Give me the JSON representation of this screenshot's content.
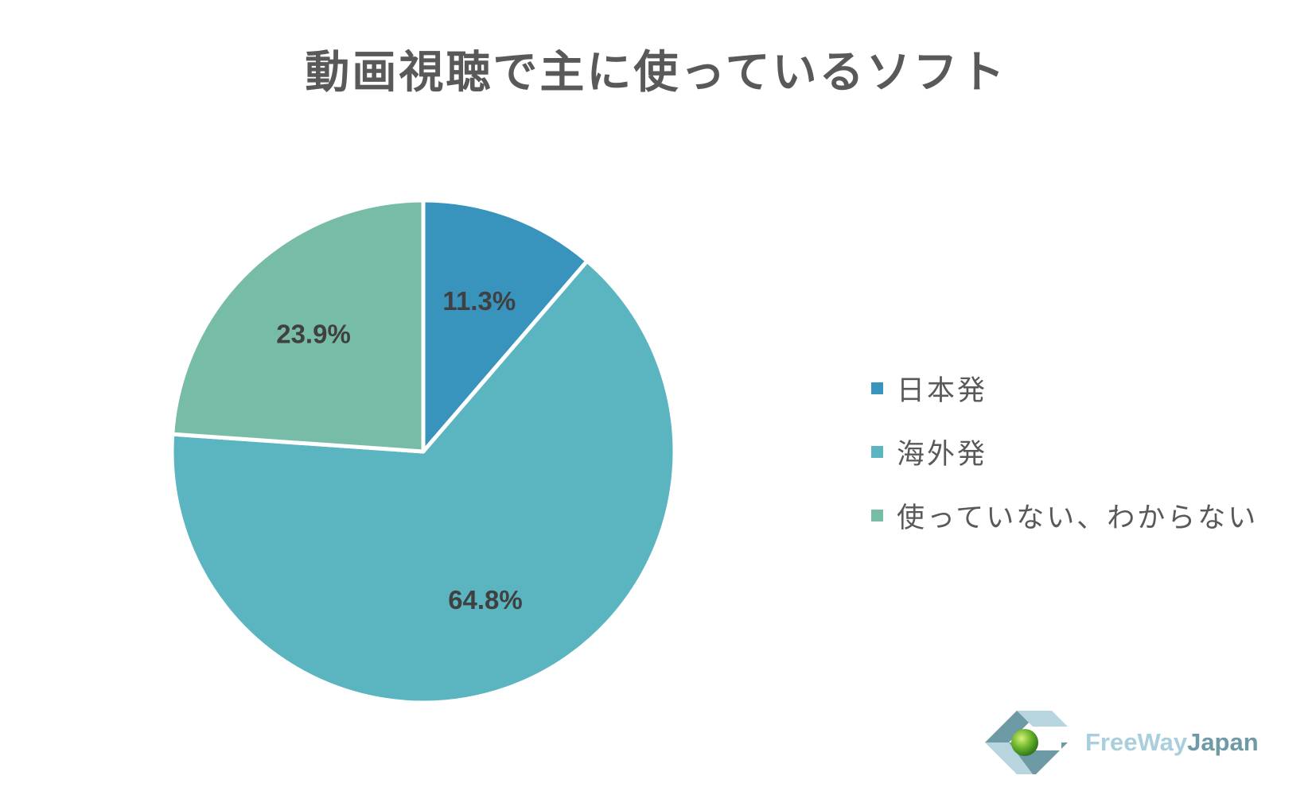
{
  "chart_data": {
    "type": "pie",
    "title": "動画視聴で主に使っているソフト",
    "slices": [
      {
        "label": "日本発",
        "value": 11.3,
        "display": "11.3%",
        "color": "#3893bd"
      },
      {
        "label": "海外発",
        "value": 64.8,
        "display": "64.8%",
        "color": "#5ab5c0"
      },
      {
        "label": "使っていない、わからない",
        "value": 23.9,
        "display": "23.9%",
        "color": "#77bca6"
      }
    ],
    "legend_position": "right",
    "start_angle": "top",
    "direction": "clockwise"
  },
  "logo": {
    "text_part1": "FreeWay",
    "text_part2": "Japan",
    "color_part1": "#a9cfdc",
    "color_part2": "#6e9aa6",
    "icon": "freewayjapan-logo-icon"
  }
}
